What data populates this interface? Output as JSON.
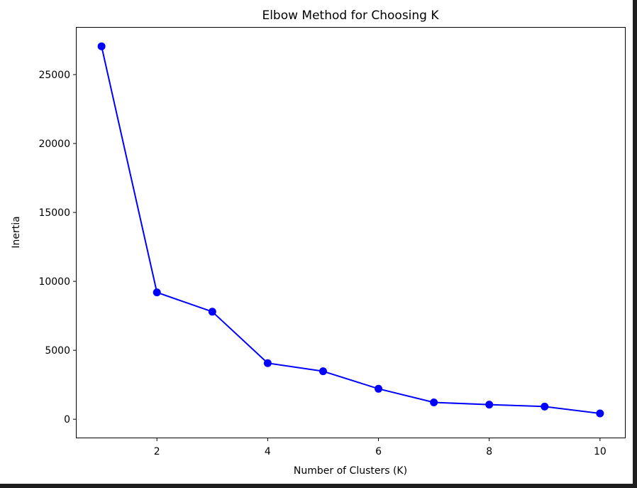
{
  "chart_data": {
    "type": "line",
    "title": "Elbow Method for Choosing K",
    "xlabel": "Number of Clusters (K)",
    "ylabel": "Inertia",
    "x": [
      1,
      2,
      3,
      4,
      5,
      6,
      7,
      8,
      9,
      10
    ],
    "series": [
      {
        "values": [
          27050,
          9200,
          7800,
          4070,
          3480,
          2210,
          1220,
          1060,
          920,
          420
        ],
        "color": "#0000ff",
        "marker": "circle"
      }
    ],
    "xlim": [
      0.55,
      10.45
    ],
    "ylim": [
      -1330,
      28400
    ],
    "xticks": [
      2,
      4,
      6,
      8,
      10
    ],
    "xtick_labels": [
      "2",
      "4",
      "6",
      "8",
      "10"
    ],
    "yticks": [
      0,
      5000,
      10000,
      15000,
      20000,
      25000
    ],
    "ytick_labels": [
      "0",
      "5000",
      "10000",
      "15000",
      "20000",
      "25000"
    ],
    "grid": false,
    "legend": "none"
  }
}
